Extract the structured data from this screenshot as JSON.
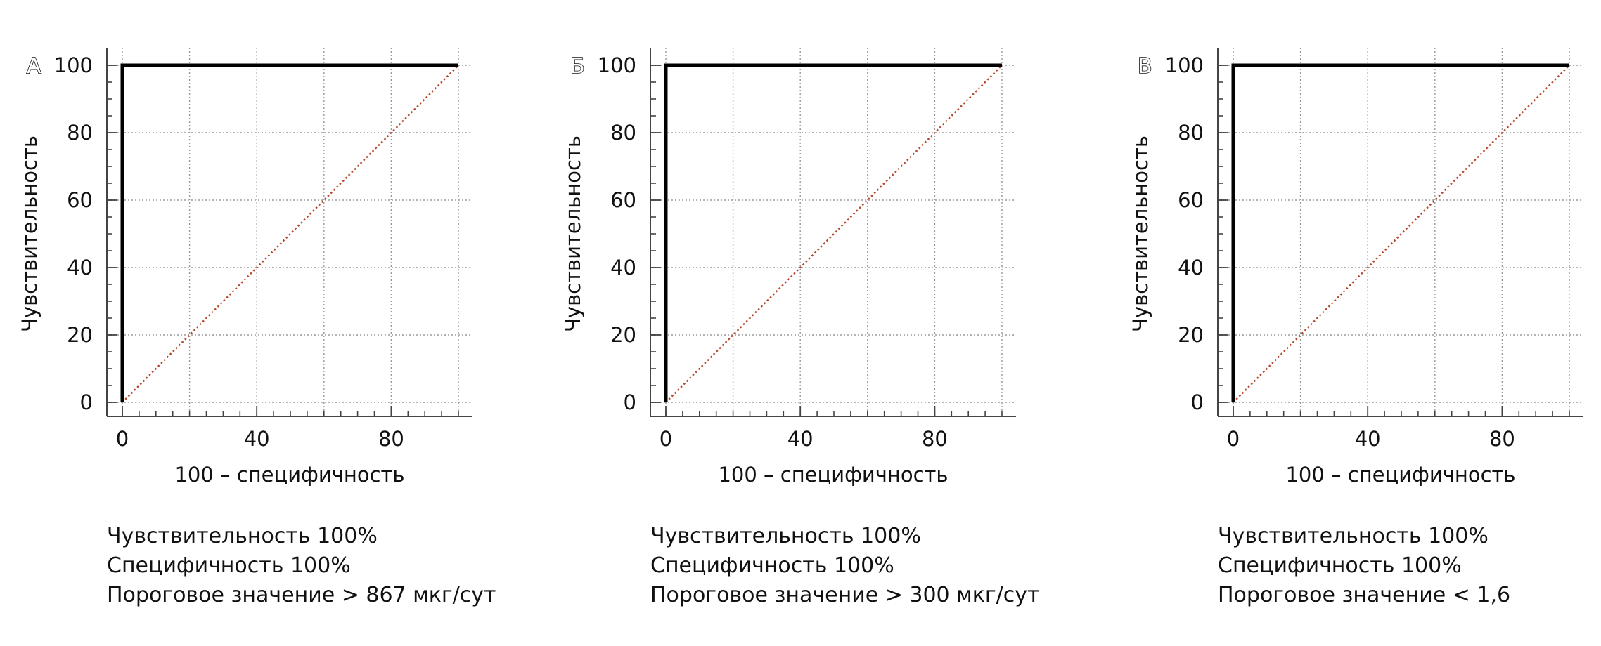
{
  "chart_data": [
    {
      "type": "line",
      "panel_label": "А",
      "xlabel": "100 – специфичность",
      "ylabel": "Чувствительность",
      "xlim": [
        0,
        100
      ],
      "ylim": [
        0,
        100
      ],
      "x_ticks": [
        0,
        40,
        80
      ],
      "y_ticks": [
        0,
        20,
        40,
        60,
        80,
        100
      ],
      "grid": true,
      "series": [
        {
          "role": "roc-curve",
          "color": "#000000",
          "x": [
            0,
            0,
            100
          ],
          "y": [
            0,
            100,
            100
          ]
        },
        {
          "role": "reference-diagonal",
          "color": "#b5462a",
          "x": [
            0,
            100
          ],
          "y": [
            0,
            100
          ]
        }
      ],
      "stats": [
        "Чувствительность 100%",
        "Специфичность 100%",
        "Пороговое значение > 867 мкг/сут"
      ]
    },
    {
      "type": "line",
      "panel_label": "Б",
      "xlabel": "100 – специфичность",
      "ylabel": "Чувствительность",
      "xlim": [
        0,
        100
      ],
      "ylim": [
        0,
        100
      ],
      "x_ticks": [
        0,
        40,
        80
      ],
      "y_ticks": [
        0,
        20,
        40,
        60,
        80,
        100
      ],
      "grid": true,
      "series": [
        {
          "role": "roc-curve",
          "color": "#000000",
          "x": [
            0,
            0,
            100
          ],
          "y": [
            0,
            100,
            100
          ]
        },
        {
          "role": "reference-diagonal",
          "color": "#b5462a",
          "x": [
            0,
            100
          ],
          "y": [
            0,
            100
          ]
        }
      ],
      "stats": [
        "Чувствительность 100%",
        "Специфичность 100%",
        "Пороговое значение > 300 мкг/сут"
      ]
    },
    {
      "type": "line",
      "panel_label": "В",
      "xlabel": "100 – специфичность",
      "ylabel": "Чувствительность",
      "xlim": [
        0,
        100
      ],
      "ylim": [
        0,
        100
      ],
      "x_ticks": [
        0,
        40,
        80
      ],
      "y_ticks": [
        0,
        20,
        40,
        60,
        80,
        100
      ],
      "grid": true,
      "series": [
        {
          "role": "roc-curve",
          "color": "#000000",
          "x": [
            0,
            0,
            100
          ],
          "y": [
            0,
            100,
            100
          ]
        },
        {
          "role": "reference-diagonal",
          "color": "#b5462a",
          "x": [
            0,
            100
          ],
          "y": [
            0,
            100
          ]
        }
      ],
      "stats": [
        "Чувствительность 100%",
        "Специфичность 100%",
        "Пороговое значение < 1,6"
      ]
    }
  ]
}
